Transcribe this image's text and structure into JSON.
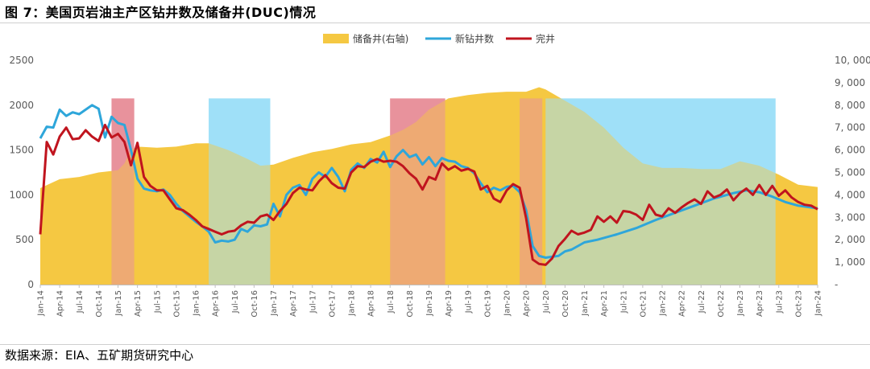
{
  "title": "图 7：美国页岩油主产区钻井数及储备井(DUC)情况",
  "source": "数据来源：EIA、五矿期货研究中心",
  "colors": {
    "duc_fill": "#F5C842",
    "new_wells": "#2EA6DA",
    "completed": "#C0141E",
    "shade_red": "#E8929C",
    "shade_blue": "#9FE0F8",
    "axis_text": "#595959"
  },
  "chart_data": {
    "type": "line",
    "x_start": "2014-01",
    "x_end": "2024-01",
    "x_tick_labels": [
      "Jan-14",
      "Apr-14",
      "Jul-14",
      "Oct-14",
      "Jan-15",
      "Apr-15",
      "Jul-15",
      "Oct-15",
      "Jan-16",
      "Apr-16",
      "Jul-16",
      "Oct-16",
      "Jan-17",
      "Apr-17",
      "Jul-17",
      "Oct-17",
      "Jan-18",
      "Apr-18",
      "Jul-18",
      "Oct-18",
      "Jan-19",
      "Apr-19",
      "Jul-19",
      "Oct-19",
      "Jan-20",
      "Apr-20",
      "Jul-20",
      "Oct-20",
      "Jan-21",
      "Apr-21",
      "Jul-21",
      "Oct-21",
      "Jan-22",
      "Apr-22",
      "Jul-22",
      "Oct-22",
      "Jan-23",
      "Apr-23",
      "Jul-23",
      "Oct-23",
      "Jan-24"
    ],
    "y_left": {
      "min": 0,
      "max": 2500,
      "ticks": [
        0,
        500,
        1000,
        1500,
        2000,
        2500
      ],
      "tick_labels": [
        "0",
        "500",
        "1000",
        "1500",
        "2000",
        "2500"
      ]
    },
    "y_right": {
      "min": 0,
      "max": 10000,
      "ticks": [
        0,
        1000,
        2000,
        3000,
        4000,
        5000,
        6000,
        7000,
        8000,
        9000,
        10000
      ],
      "tick_labels": [
        "-",
        "1, 000",
        "2, 000",
        "3, 000",
        "4, 000",
        "5, 000",
        "6, 000",
        "7, 000",
        "8, 000",
        "9, 000",
        "10, 000"
      ]
    },
    "legend": {
      "position": "top-center"
    },
    "series": [
      {
        "name": "储备井(右轴)",
        "kind": "area",
        "axis": "right",
        "points": [
          [
            "2014-01",
            4300
          ],
          [
            "2014-04",
            4700
          ],
          [
            "2014-07",
            4800
          ],
          [
            "2014-10",
            5000
          ],
          [
            "2015-01",
            5100
          ],
          [
            "2015-02",
            5400
          ],
          [
            "2015-03",
            6000
          ],
          [
            "2015-04",
            6150
          ],
          [
            "2015-07",
            6100
          ],
          [
            "2015-10",
            6150
          ],
          [
            "2016-01",
            6300
          ],
          [
            "2016-03",
            6300
          ],
          [
            "2016-06",
            6000
          ],
          [
            "2016-09",
            5600
          ],
          [
            "2016-11",
            5300
          ],
          [
            "2017-01",
            5350
          ],
          [
            "2017-04",
            5650
          ],
          [
            "2017-07",
            5900
          ],
          [
            "2017-10",
            6050
          ],
          [
            "2018-01",
            6250
          ],
          [
            "2018-04",
            6350
          ],
          [
            "2018-07",
            6650
          ],
          [
            "2018-09",
            6900
          ],
          [
            "2018-11",
            7250
          ],
          [
            "2019-01",
            7800
          ],
          [
            "2019-04",
            8300
          ],
          [
            "2019-07",
            8450
          ],
          [
            "2019-10",
            8550
          ],
          [
            "2020-01",
            8600
          ],
          [
            "2020-04",
            8600
          ],
          [
            "2020-06",
            8800
          ],
          [
            "2020-07",
            8700
          ],
          [
            "2020-10",
            8200
          ],
          [
            "2021-01",
            7700
          ],
          [
            "2021-04",
            7000
          ],
          [
            "2021-07",
            6100
          ],
          [
            "2021-10",
            5400
          ],
          [
            "2022-01",
            5200
          ],
          [
            "2022-04",
            5200
          ],
          [
            "2022-07",
            5150
          ],
          [
            "2022-10",
            5150
          ],
          [
            "2023-01",
            5500
          ],
          [
            "2023-04",
            5300
          ],
          [
            "2023-07",
            4900
          ],
          [
            "2023-10",
            4450
          ],
          [
            "2024-01",
            4350
          ]
        ]
      },
      {
        "name": "新钻井数",
        "kind": "line",
        "axis": "left",
        "points": [
          [
            "2014-01",
            1630
          ],
          [
            "2014-02",
            1760
          ],
          [
            "2014-03",
            1750
          ],
          [
            "2014-04",
            1950
          ],
          [
            "2014-05",
            1880
          ],
          [
            "2014-06",
            1920
          ],
          [
            "2014-07",
            1900
          ],
          [
            "2014-08",
            1950
          ],
          [
            "2014-09",
            2000
          ],
          [
            "2014-10",
            1960
          ],
          [
            "2014-11",
            1640
          ],
          [
            "2014-12",
            1870
          ],
          [
            "2015-01",
            1800
          ],
          [
            "2015-02",
            1780
          ],
          [
            "2015-03",
            1500
          ],
          [
            "2015-04",
            1180
          ],
          [
            "2015-05",
            1070
          ],
          [
            "2015-06",
            1050
          ],
          [
            "2015-07",
            1040
          ],
          [
            "2015-08",
            1060
          ],
          [
            "2015-09",
            1000
          ],
          [
            "2015-10",
            900
          ],
          [
            "2015-11",
            820
          ],
          [
            "2015-12",
            760
          ],
          [
            "2016-01",
            700
          ],
          [
            "2016-02",
            650
          ],
          [
            "2016-03",
            590
          ],
          [
            "2016-04",
            470
          ],
          [
            "2016-05",
            490
          ],
          [
            "2016-06",
            480
          ],
          [
            "2016-07",
            500
          ],
          [
            "2016-08",
            620
          ],
          [
            "2016-09",
            590
          ],
          [
            "2016-10",
            660
          ],
          [
            "2016-11",
            650
          ],
          [
            "2016-12",
            670
          ],
          [
            "2017-01",
            900
          ],
          [
            "2017-02",
            760
          ],
          [
            "2017-03",
            1000
          ],
          [
            "2017-04",
            1080
          ],
          [
            "2017-05",
            1110
          ],
          [
            "2017-06",
            1000
          ],
          [
            "2017-07",
            1180
          ],
          [
            "2017-08",
            1250
          ],
          [
            "2017-09",
            1200
          ],
          [
            "2017-10",
            1300
          ],
          [
            "2017-11",
            1200
          ],
          [
            "2017-12",
            1040
          ],
          [
            "2018-01",
            1280
          ],
          [
            "2018-02",
            1350
          ],
          [
            "2018-03",
            1300
          ],
          [
            "2018-04",
            1400
          ],
          [
            "2018-05",
            1360
          ],
          [
            "2018-06",
            1480
          ],
          [
            "2018-07",
            1310
          ],
          [
            "2018-08",
            1430
          ],
          [
            "2018-09",
            1500
          ],
          [
            "2018-10",
            1420
          ],
          [
            "2018-11",
            1450
          ],
          [
            "2018-12",
            1340
          ],
          [
            "2019-01",
            1420
          ],
          [
            "2019-02",
            1320
          ],
          [
            "2019-03",
            1410
          ],
          [
            "2019-04",
            1380
          ],
          [
            "2019-05",
            1370
          ],
          [
            "2019-06",
            1320
          ],
          [
            "2019-07",
            1300
          ],
          [
            "2019-08",
            1240
          ],
          [
            "2019-09",
            1130
          ],
          [
            "2019-10",
            1030
          ],
          [
            "2019-11",
            1080
          ],
          [
            "2019-12",
            1050
          ],
          [
            "2020-01",
            1090
          ],
          [
            "2020-02",
            1100
          ],
          [
            "2020-03",
            1030
          ],
          [
            "2020-04",
            830
          ],
          [
            "2020-05",
            430
          ],
          [
            "2020-06",
            320
          ],
          [
            "2020-07",
            300
          ],
          [
            "2020-08",
            310
          ],
          [
            "2020-09",
            320
          ],
          [
            "2020-10",
            370
          ],
          [
            "2020-11",
            390
          ],
          [
            "2020-12",
            430
          ],
          [
            "2021-01",
            470
          ],
          [
            "2021-03",
            500
          ],
          [
            "2021-06",
            560
          ],
          [
            "2021-09",
            630
          ],
          [
            "2021-12",
            720
          ],
          [
            "2022-03",
            800
          ],
          [
            "2022-06",
            880
          ],
          [
            "2022-09",
            960
          ],
          [
            "2022-12",
            1020
          ],
          [
            "2023-02",
            1050
          ],
          [
            "2023-04",
            1030
          ],
          [
            "2023-06",
            980
          ],
          [
            "2023-08",
            920
          ],
          [
            "2023-10",
            880
          ],
          [
            "2023-12",
            860
          ],
          [
            "2024-01",
            850
          ]
        ]
      },
      {
        "name": "完井",
        "kind": "line",
        "axis": "left",
        "points": [
          [
            "2014-01",
            560
          ],
          [
            "2014-02",
            1590
          ],
          [
            "2014-03",
            1450
          ],
          [
            "2014-04",
            1650
          ],
          [
            "2014-05",
            1750
          ],
          [
            "2014-06",
            1620
          ],
          [
            "2014-07",
            1630
          ],
          [
            "2014-08",
            1720
          ],
          [
            "2014-09",
            1650
          ],
          [
            "2014-10",
            1600
          ],
          [
            "2014-11",
            1780
          ],
          [
            "2014-12",
            1640
          ],
          [
            "2015-01",
            1680
          ],
          [
            "2015-02",
            1590
          ],
          [
            "2015-03",
            1330
          ],
          [
            "2015-04",
            1580
          ],
          [
            "2015-05",
            1200
          ],
          [
            "2015-06",
            1100
          ],
          [
            "2015-07",
            1050
          ],
          [
            "2015-08",
            1050
          ],
          [
            "2015-09",
            950
          ],
          [
            "2015-10",
            850
          ],
          [
            "2015-11",
            830
          ],
          [
            "2015-12",
            780
          ],
          [
            "2016-01",
            720
          ],
          [
            "2016-02",
            650
          ],
          [
            "2016-03",
            620
          ],
          [
            "2016-04",
            590
          ],
          [
            "2016-05",
            560
          ],
          [
            "2016-06",
            590
          ],
          [
            "2016-07",
            600
          ],
          [
            "2016-08",
            660
          ],
          [
            "2016-09",
            700
          ],
          [
            "2016-10",
            690
          ],
          [
            "2016-11",
            760
          ],
          [
            "2016-12",
            780
          ],
          [
            "2017-01",
            720
          ],
          [
            "2017-02",
            820
          ],
          [
            "2017-03",
            900
          ],
          [
            "2017-04",
            1020
          ],
          [
            "2017-05",
            1080
          ],
          [
            "2017-06",
            1060
          ],
          [
            "2017-07",
            1050
          ],
          [
            "2017-08",
            1150
          ],
          [
            "2017-09",
            1220
          ],
          [
            "2017-10",
            1130
          ],
          [
            "2017-11",
            1080
          ],
          [
            "2017-12",
            1070
          ],
          [
            "2018-01",
            1250
          ],
          [
            "2018-02",
            1320
          ],
          [
            "2018-03",
            1310
          ],
          [
            "2018-04",
            1370
          ],
          [
            "2018-05",
            1400
          ],
          [
            "2018-06",
            1370
          ],
          [
            "2018-07",
            1380
          ],
          [
            "2018-08",
            1370
          ],
          [
            "2018-09",
            1320
          ],
          [
            "2018-10",
            1240
          ],
          [
            "2018-11",
            1180
          ],
          [
            "2018-12",
            1060
          ],
          [
            "2019-01",
            1200
          ],
          [
            "2019-02",
            1170
          ],
          [
            "2019-03",
            1350
          ],
          [
            "2019-04",
            1280
          ],
          [
            "2019-05",
            1320
          ],
          [
            "2019-06",
            1270
          ],
          [
            "2019-07",
            1290
          ],
          [
            "2019-08",
            1260
          ],
          [
            "2019-09",
            1060
          ],
          [
            "2019-10",
            1100
          ],
          [
            "2019-11",
            960
          ],
          [
            "2019-12",
            920
          ],
          [
            "2020-01",
            1050
          ],
          [
            "2020-02",
            1120
          ],
          [
            "2020-03",
            1080
          ],
          [
            "2020-04",
            740
          ],
          [
            "2020-05",
            280
          ],
          [
            "2020-06",
            230
          ],
          [
            "2020-07",
            220
          ],
          [
            "2020-08",
            290
          ],
          [
            "2020-09",
            430
          ],
          [
            "2020-10",
            510
          ],
          [
            "2020-11",
            600
          ],
          [
            "2020-12",
            560
          ],
          [
            "2021-01",
            580
          ],
          [
            "2021-02",
            610
          ],
          [
            "2021-03",
            760
          ],
          [
            "2021-04",
            700
          ],
          [
            "2021-05",
            760
          ],
          [
            "2021-06",
            690
          ],
          [
            "2021-07",
            820
          ],
          [
            "2021-08",
            810
          ],
          [
            "2021-09",
            780
          ],
          [
            "2021-10",
            720
          ],
          [
            "2021-11",
            890
          ],
          [
            "2021-12",
            780
          ],
          [
            "2022-01",
            760
          ],
          [
            "2022-02",
            850
          ],
          [
            "2022-03",
            800
          ],
          [
            "2022-04",
            860
          ],
          [
            "2022-05",
            910
          ],
          [
            "2022-06",
            950
          ],
          [
            "2022-07",
            900
          ],
          [
            "2022-08",
            1040
          ],
          [
            "2022-09",
            970
          ],
          [
            "2022-10",
            1000
          ],
          [
            "2022-11",
            1060
          ],
          [
            "2022-12",
            940
          ],
          [
            "2023-01",
            1020
          ],
          [
            "2023-02",
            1070
          ],
          [
            "2023-03",
            1000
          ],
          [
            "2023-04",
            1110
          ],
          [
            "2023-05",
            1000
          ],
          [
            "2023-06",
            1100
          ],
          [
            "2023-07",
            990
          ],
          [
            "2023-08",
            1050
          ],
          [
            "2023-09",
            970
          ],
          [
            "2023-10",
            920
          ],
          [
            "2023-11",
            890
          ],
          [
            "2023-12",
            880
          ],
          [
            "2024-01",
            840
          ]
        ]
      }
    ],
    "highlight_periods": [
      {
        "type": "red",
        "from": "2014-12",
        "to": "2015-03"
      },
      {
        "type": "blue",
        "from": "2016-03",
        "to": "2016-12"
      },
      {
        "type": "red",
        "from": "2018-07",
        "to": "2019-03"
      },
      {
        "type": "red",
        "from": "2020-03",
        "to": "2020-06"
      },
      {
        "type": "blue",
        "from": "2020-07",
        "to": "2023-06"
      }
    ]
  }
}
